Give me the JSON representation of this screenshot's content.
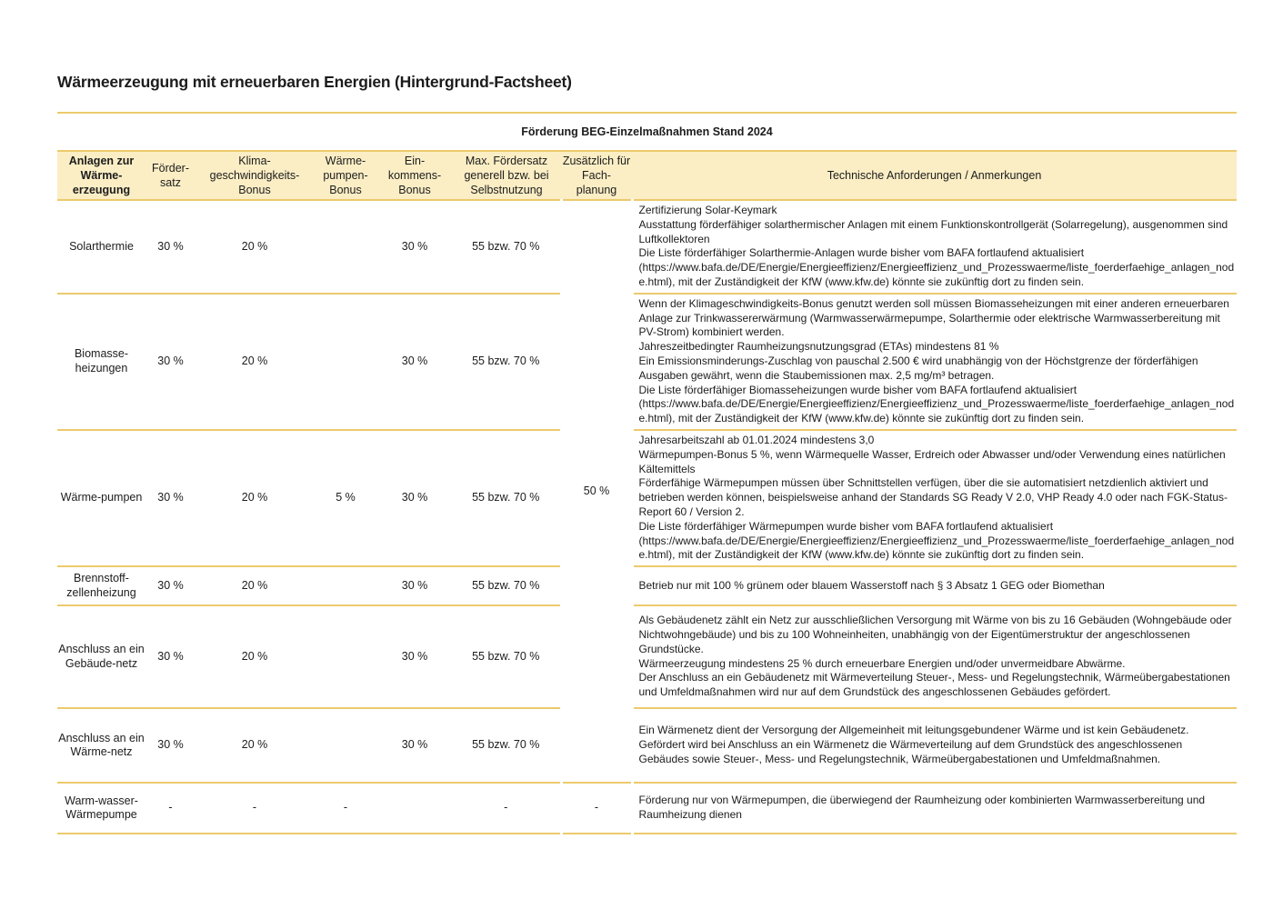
{
  "page": {
    "title": "Wärmeerzeugung mit erneuerbaren Energien (Hintergrund-Factsheet)",
    "caption": "Förderung BEG-Einzelmaßnahmen Stand 2024"
  },
  "colors": {
    "header_bg": "#fbeec5",
    "divider_line": "#ecca6c"
  },
  "table": {
    "headers": {
      "anlagen": "Anlagen zur Wärme-erzeugung",
      "foerdersatz": "Förder-satz",
      "klima": "Klima-geschwindigkeits-Bonus",
      "waermepumpen": "Wärme-pumpen-Bonus",
      "einkommens": "Ein-kommens-Bonus",
      "max": "Max. Fördersatz generell bzw. bei Selbstnutzung",
      "fachplanung": "Zusätzlich für Fach-planung",
      "technisch": "Technische Anforderungen / Anmerkungen"
    },
    "fachplanung_merged_value": "50 %",
    "rows": [
      {
        "name": "Solarthermie",
        "foerdersatz": "30 %",
        "klima_bonus": "20 %",
        "wp_bonus": "",
        "einkommens_bonus": "30 %",
        "max_foerdersatz": "55 bzw. 70 %",
        "tech": [
          "Zertifizierung Solar-Keymark",
          "Ausstattung förderfähiger solarthermischer Anlagen mit einem Funktionskontrollgerät (Solarregelung), ausgenommen sind Luftkollektoren",
          "Die Liste förderfähiger Solarthermie-Anlagen wurde bisher vom BAFA fortlaufend aktualisiert (https://www.bafa.de/DE/Energie/Energieeffizienz/Energieeffizienz_und_Prozesswaerme/liste_foerderfaehige_anlagen_node.html), mit der Zuständigkeit der KfW (www.kfw.de) könnte sie zukünftig dort zu finden sein."
        ]
      },
      {
        "name": "Biomasse-heizungen",
        "foerdersatz": "30 %",
        "klima_bonus": "20 %",
        "wp_bonus": "",
        "einkommens_bonus": "30 %",
        "max_foerdersatz": "55 bzw. 70 %",
        "tech": [
          "Wenn der Klimageschwindigkeits-Bonus genutzt werden soll müssen Biomasseheizungen mit einer anderen erneuerbaren Anlage zur Trinkwassererwärmung (Warmwasserwärmepumpe, Solarthermie oder elektrische Warmwasserbereitung mit PV-Strom) kombiniert werden.",
          "Jahreszeitbedingter Raumheizungsnutzungsgrad (ETAs) mindestens 81 %",
          "Ein Emissionsminderungs-Zuschlag von pauschal 2.500 € wird unabhängig von der Höchstgrenze der förderfähigen Ausgaben gewährt, wenn die Staubemissionen max. 2,5 mg/m³ betragen.",
          "Die Liste förderfähiger Biomasseheizungen wurde bisher vom BAFA fortlaufend aktualisiert (https://www.bafa.de/DE/Energie/Energieeffizienz/Energieeffizienz_und_Prozesswaerme/liste_foerderfaehige_anlagen_node.html), mit der Zuständigkeit der KfW (www.kfw.de) könnte sie zukünftig dort zu finden sein."
        ]
      },
      {
        "name": "Wärme-pumpen",
        "foerdersatz": "30 %",
        "klima_bonus": "20 %",
        "wp_bonus": "5 %",
        "einkommens_bonus": "30 %",
        "max_foerdersatz": "55 bzw. 70 %",
        "tech": [
          "Jahresarbeitszahl ab 01.01.2024 mindestens 3,0",
          "Wärmepumpen-Bonus 5 %, wenn Wärmequelle Wasser, Erdreich oder Abwasser und/oder Verwendung eines natürlichen Kältemittels",
          "Förderfähige Wärmepumpen müssen über Schnittstellen verfügen, über die sie automatisiert netzdienlich aktiviert und betrieben werden können, beispielsweise anhand der Standards SG Ready V 2.0, VHP Ready 4.0 oder nach FGK-Status-Report 60 / Version 2.",
          "Die Liste förderfähiger Wärmepumpen wurde bisher vom BAFA fortlaufend aktualisiert (https://www.bafa.de/DE/Energie/Energieeffizienz/Energieeffizienz_und_Prozesswaerme/liste_foerderfaehige_anlagen_node.html), mit der Zuständigkeit der KfW (www.kfw.de) könnte sie zukünftig dort zu finden sein."
        ]
      },
      {
        "name": "Brennstoff-zellenheizung",
        "foerdersatz": "30 %",
        "klima_bonus": "20 %",
        "wp_bonus": "",
        "einkommens_bonus": "30 %",
        "max_foerdersatz": "55 bzw. 70 %",
        "tech": [
          "Betrieb nur mit 100 % grünem oder blauem Wasserstoff nach § 3 Absatz 1 GEG oder Biomethan"
        ]
      },
      {
        "name": "Anschluss an ein Gebäude-netz",
        "foerdersatz": "30 %",
        "klima_bonus": "20 %",
        "wp_bonus": "",
        "einkommens_bonus": "30 %",
        "max_foerdersatz": "55 bzw. 70 %",
        "tech": [
          "Als Gebäudenetz zählt ein Netz zur ausschließlichen Versorgung mit Wärme von bis zu 16 Gebäuden (Wohngebäude oder Nichtwohngebäude) und bis zu 100 Wohneinheiten, unabhängig von der Eigentümerstruktur der angeschlossenen Grundstücke.",
          "Wärmeerzeugung mindestens 25 % durch erneuerbare Energien und/oder unvermeidbare Abwärme.",
          "Der Anschluss an ein Gebäudenetz mit Wärmeverteilung Steuer-, Mess- und Regelungstechnik, Wärmeübergabestationen und Umfeldmaßnahmen wird nur auf dem Grundstück des angeschlossenen Gebäudes gefördert."
        ]
      },
      {
        "name": "Anschluss an ein Wärme-netz",
        "foerdersatz": "30 %",
        "klima_bonus": "20 %",
        "wp_bonus": "",
        "einkommens_bonus": "30 %",
        "max_foerdersatz": "55 bzw. 70 %",
        "tech": [
          "Ein Wärmenetz dient der Versorgung der Allgemeinheit mit leitungsgebundener Wärme und ist kein Gebäudenetz.",
          "Gefördert wird bei Anschluss an ein Wärmenetz die Wärmeverteilung auf dem Grundstück des angeschlossenen Gebäudes sowie Steuer-, Mess- und Regelungstechnik, Wärmeübergabestationen und Umfeldmaßnahmen."
        ]
      },
      {
        "name": "Warm-wasser-Wärmepumpe",
        "foerdersatz": "-",
        "klima_bonus": "-",
        "wp_bonus": "-",
        "einkommens_bonus": "",
        "max_foerdersatz": "-",
        "fachplanung": "-",
        "tech": [
          "Förderung nur von Wärmepumpen, die überwiegend der Raumheizung oder kombinierten Warmwasserbereitung und Raumheizung dienen"
        ]
      }
    ]
  }
}
